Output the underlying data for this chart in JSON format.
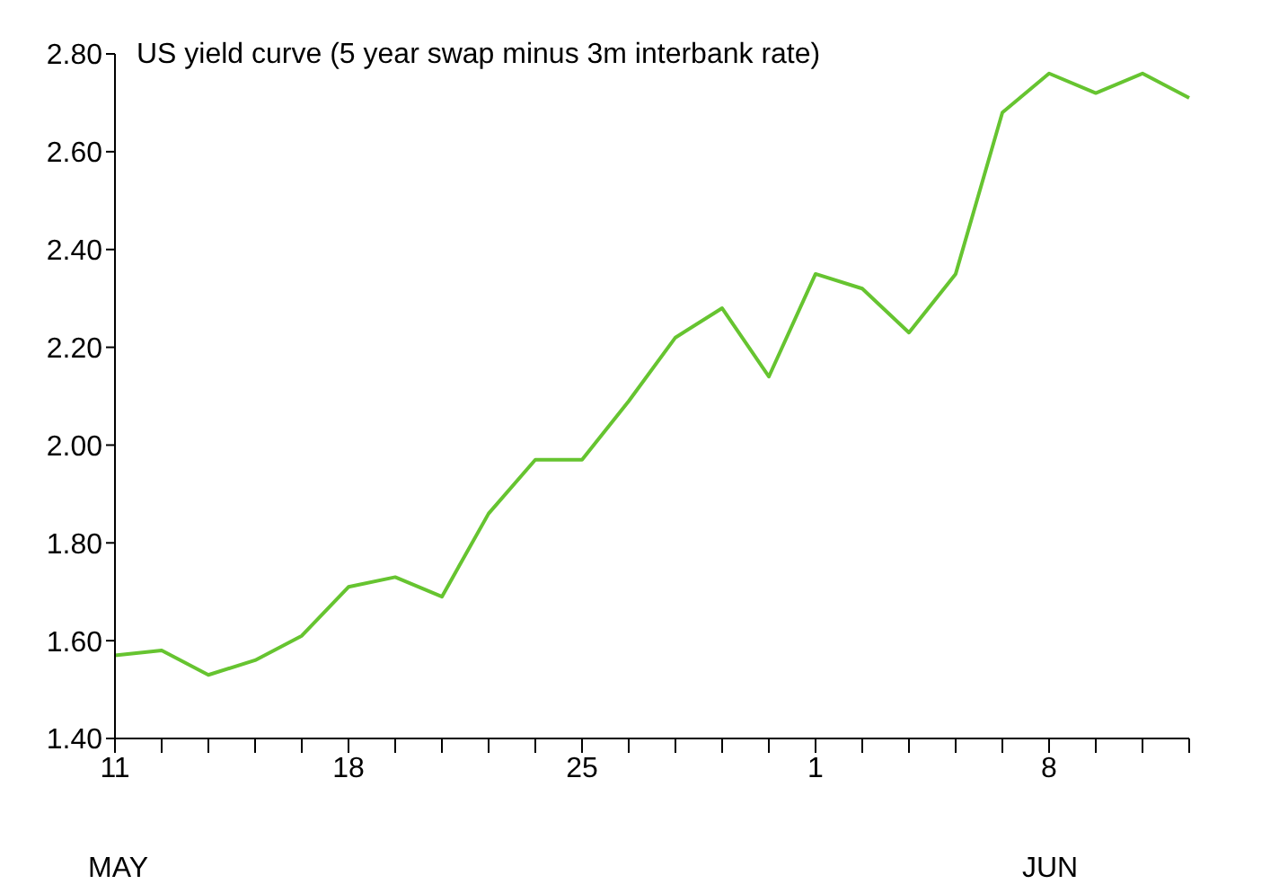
{
  "chart_data": {
    "type": "line",
    "title": "US yield curve (5 year swap minus 3m interbank rate)",
    "categories": [
      "11",
      null,
      null,
      null,
      null,
      "18",
      null,
      null,
      null,
      null,
      "25",
      null,
      null,
      null,
      null,
      "1",
      null,
      null,
      null,
      null,
      "8",
      null,
      null,
      null
    ],
    "series": [
      {
        "color": "#66c430",
        "values": [
          1.57,
          1.58,
          1.53,
          1.56,
          1.61,
          1.71,
          1.73,
          1.69,
          1.86,
          1.97,
          1.97,
          2.09,
          2.22,
          2.28,
          2.14,
          2.35,
          2.32,
          2.23,
          2.35,
          2.68,
          2.76,
          2.72,
          2.76,
          2.71
        ]
      }
    ],
    "annotations": [
      "MAY",
      "JUN"
    ],
    "ylim": [
      1.4,
      2.8
    ],
    "yticks": [
      {
        "value": 1.4,
        "label": "1.40"
      },
      {
        "value": 1.6,
        "label": "1.60"
      },
      {
        "value": 1.8,
        "label": "1.80"
      },
      {
        "value": 2.0,
        "label": "2.00"
      },
      {
        "value": 2.2,
        "label": "2.20"
      },
      {
        "value": 2.4,
        "label": "2.40"
      },
      {
        "value": 2.6,
        "label": "2.60"
      },
      {
        "value": 2.8,
        "label": "2.80"
      }
    ],
    "grid": false,
    "legend": false,
    "marker": "none",
    "line_style": "solid"
  }
}
